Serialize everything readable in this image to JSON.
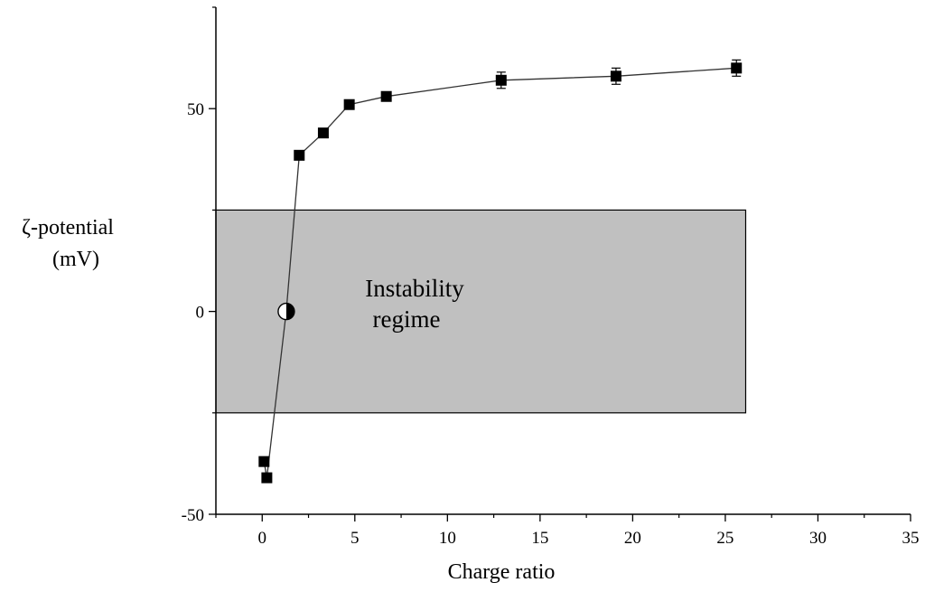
{
  "chart_data": {
    "type": "scatter",
    "title": "",
    "xlabel": "Charge ratio",
    "ylabel_line1": "ζ-potential",
    "ylabel_line2": "(mV)",
    "xlim": [
      -2.5,
      35
    ],
    "ylim": [
      -50,
      75
    ],
    "xticks": [
      0,
      5,
      10,
      15,
      20,
      25,
      30,
      35
    ],
    "yticks": [
      -50,
      0,
      50
    ],
    "grid": false,
    "series": [
      {
        "name": "zeta potential",
        "marker": "filled-square",
        "x": [
          0.1,
          0.25,
          2.0,
          3.3,
          4.7,
          6.7,
          12.9,
          19.1,
          25.6
        ],
        "y": [
          -37,
          -41,
          38.5,
          44,
          51,
          53,
          57,
          58,
          60
        ],
        "error": [
          0,
          0,
          0,
          0,
          0,
          0,
          2,
          2,
          2
        ]
      }
    ],
    "crossing_point": {
      "x": 1.3,
      "y": 0,
      "marker": "half-filled-circle"
    },
    "instability_regime": {
      "label_line1": "Instability",
      "label_line2": "regime",
      "x_range": [
        -2.5,
        26.1
      ],
      "y_range": [
        -25,
        25
      ],
      "color": "#c0c0c0"
    }
  }
}
